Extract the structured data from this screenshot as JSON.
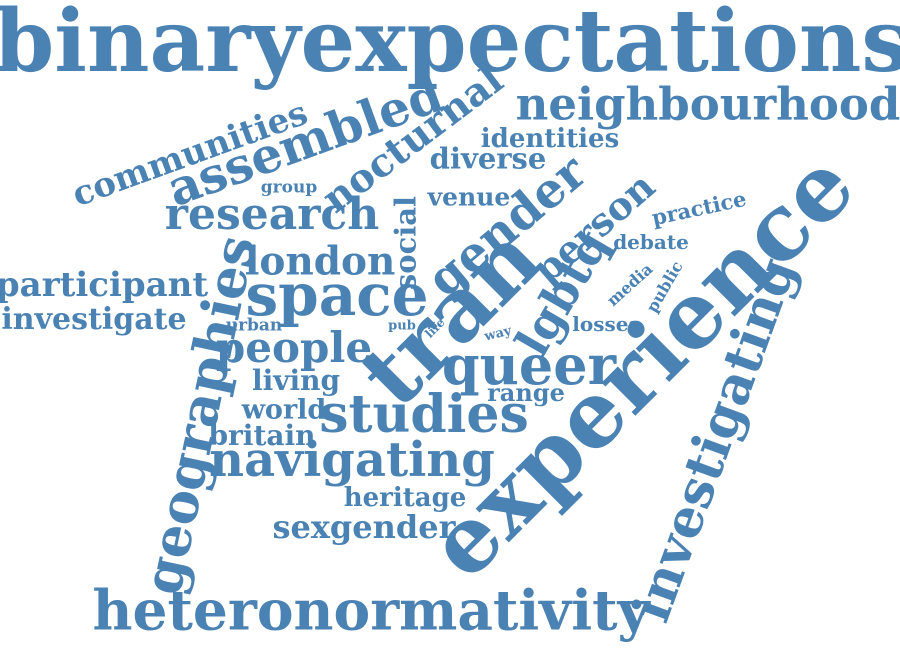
{
  "color": "#4a82b4",
  "words": [
    "binaryexpectations",
    "neighbourhood",
    "communities",
    "assembled",
    "nocturnal",
    "identities",
    "diverse",
    "group",
    "venue",
    "research",
    "social",
    "gender",
    "person",
    "practice",
    "debate",
    "participant",
    "london",
    "geographies",
    "space",
    "tran",
    "lgbtq",
    "media",
    "public",
    "investigate",
    "urban",
    "pub",
    "life",
    "way",
    "losses",
    "experience",
    "people",
    "queer",
    "living",
    "range",
    "world",
    "studies",
    "britain",
    "navigating",
    "investigating",
    "heritage",
    "sexgender",
    "heteronormativity"
  ]
}
